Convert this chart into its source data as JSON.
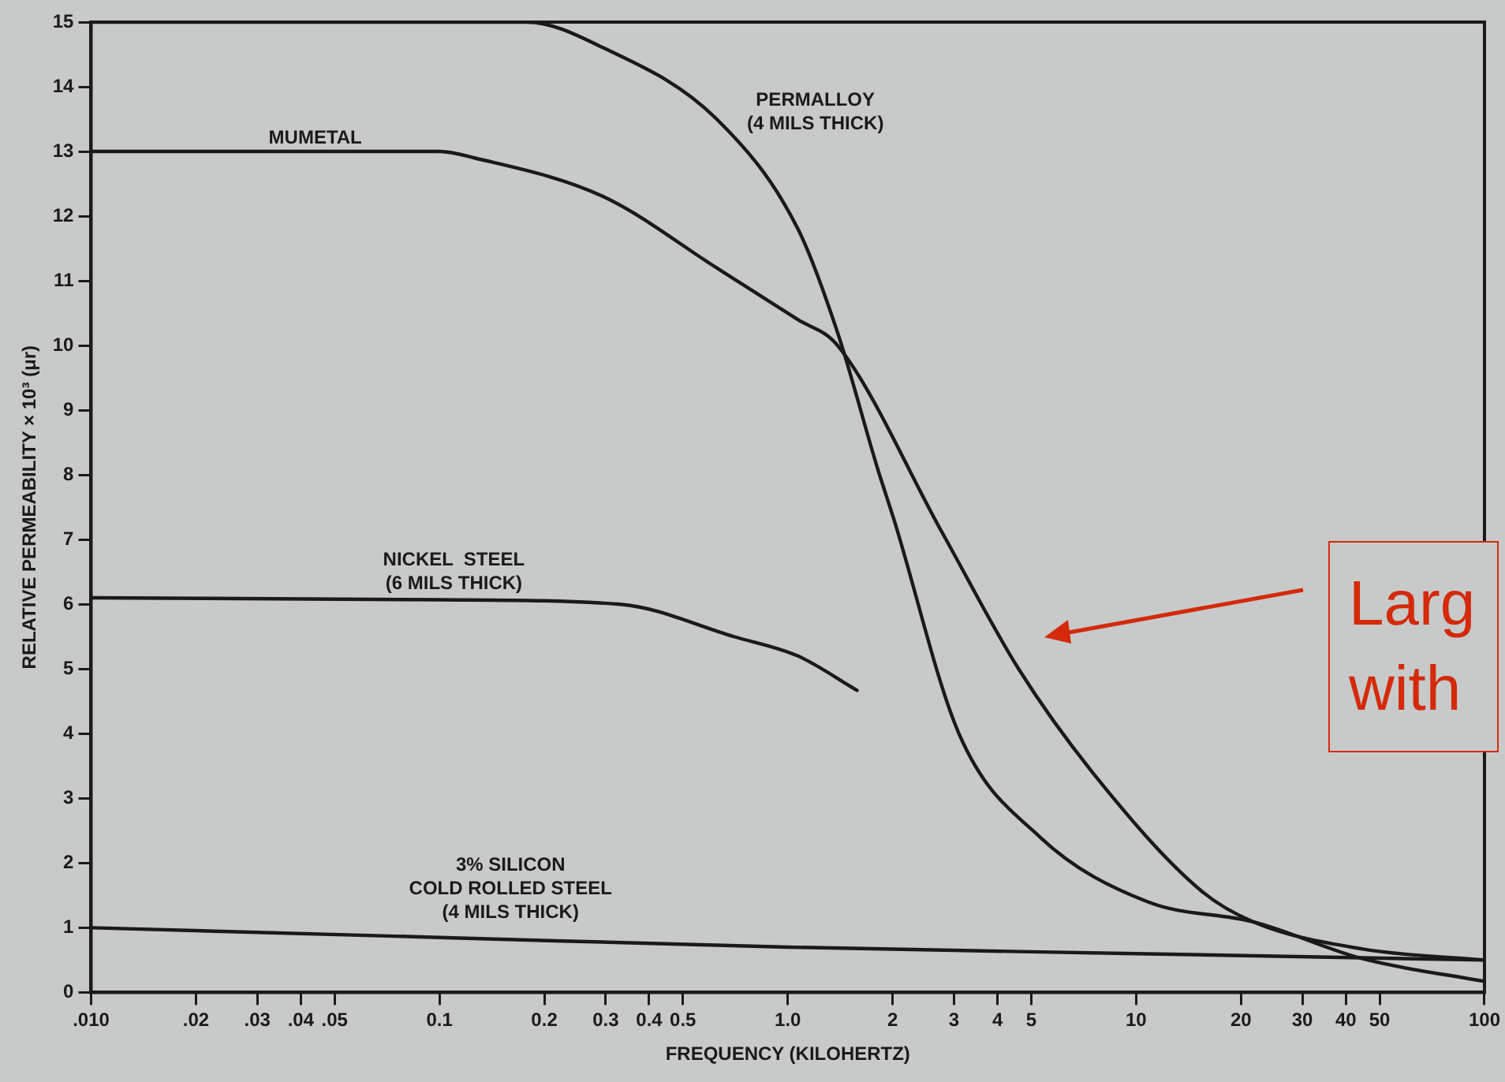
{
  "chart_data": {
    "type": "line",
    "xlabel": "FREQUENCY (KILOHERTZ)",
    "ylabel": "RELATIVE PERMEABILITY × 10³ (μr)",
    "log": "x",
    "grid": false,
    "legend": false,
    "marker": "none",
    "line_style": "solid",
    "xlim": [
      0.01,
      100
    ],
    "ylim": [
      0,
      15
    ],
    "xticks": [
      {
        "value": 0.01,
        "label": ".010"
      },
      {
        "value": 0.02,
        "label": ".02"
      },
      {
        "value": 0.03,
        "label": ".03"
      },
      {
        "value": 0.04,
        "label": ".04"
      },
      {
        "value": 0.05,
        "label": ".05"
      },
      0.1,
      0.2,
      0.3,
      0.4,
      0.5,
      {
        "value": 1,
        "label": "1.0"
      },
      2,
      3,
      4,
      5,
      10,
      20,
      30,
      40,
      50,
      100
    ],
    "yticks": [
      0,
      1,
      2,
      3,
      4,
      5,
      6,
      7,
      8,
      9,
      10,
      11,
      12,
      13,
      14,
      15
    ],
    "series": [
      {
        "name": "PERMALLOY\n(4 MILS THICK)",
        "color": "#1a1a1a",
        "x": [
          0.01,
          0.1,
          0.178,
          0.296,
          0.625,
          1.07,
          1.39,
          1.81,
          2.02,
          3.1,
          5.3,
          10.8,
          21.7,
          44.7,
          100
        ],
        "values": [
          15,
          15,
          15,
          14.6,
          13.5,
          11.8,
          10.2,
          8.1,
          7.3,
          4.0,
          2.4,
          1.4,
          1.09,
          0.52,
          0.17
        ]
      },
      {
        "name": "MUMETAL",
        "color": "#1a1a1a",
        "x": [
          0.01,
          0.1,
          0.126,
          0.296,
          0.625,
          1.07,
          1.39,
          2.78,
          4.6,
          7.5,
          15.3,
          21.7,
          44.7,
          100
        ],
        "values": [
          13,
          13,
          12.9,
          12.3,
          11.2,
          10.4,
          10.0,
          7.1,
          5.0,
          3.4,
          1.58,
          1.09,
          0.67,
          0.5
        ]
      },
      {
        "name": "NICKEL  STEEL\n(6 MILS THICK)",
        "color": "#1a1a1a",
        "x": [
          0.01,
          0.1,
          0.33,
          0.7,
          1.07,
          1.58
        ],
        "values": [
          6.1,
          6.07,
          6.0,
          5.5,
          5.2,
          4.67
        ]
      },
      {
        "name": "3% SILICON\nCOLD ROLLED STEEL\n(4 MILS THICK)",
        "color": "#1a1a1a",
        "x": [
          0.01,
          0.1,
          1,
          10,
          100
        ],
        "values": [
          1.0,
          0.85,
          0.7,
          0.6,
          0.5
        ]
      }
    ],
    "annotations": [
      "Larg with"
    ]
  }
}
